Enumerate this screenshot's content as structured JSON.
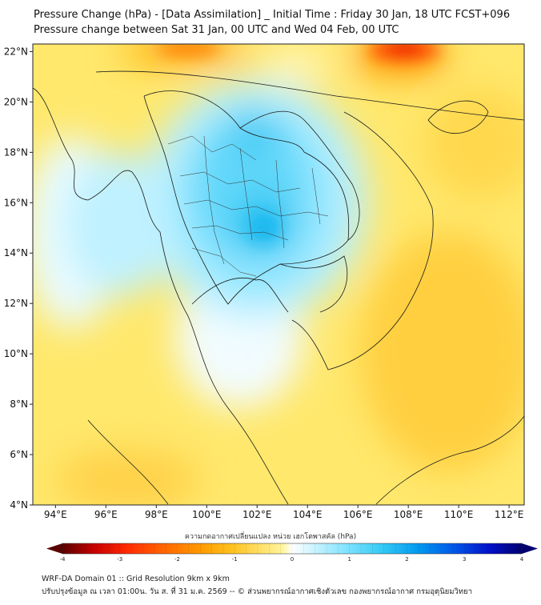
{
  "header": {
    "title_line1": "Pressure Change (hPa) - [Data Assimilation] _ Initial Time : Friday 30 Jan, 18 UTC FCST+096",
    "title_line2": "Pressure change between Sat 31 Jan, 00 UTC and Wed 04 Feb, 00 UTC"
  },
  "map": {
    "lat_ticks": [
      "22°N",
      "20°N",
      "18°N",
      "16°N",
      "14°N",
      "12°N",
      "10°N",
      "8°N",
      "6°N",
      "4°N"
    ],
    "lon_ticks": [
      "94°E",
      "96°E",
      "98°E",
      "100°E",
      "102°E",
      "104°E",
      "106°E",
      "108°E",
      "110°E",
      "112°E"
    ],
    "lat_range": [
      4,
      22.3
    ],
    "lon_range": [
      93.1,
      112.6
    ]
  },
  "colorbar": {
    "title": "ความกดอากาศเปลี่ยนแปลง หน่วย เฮกโตพาสคัล (hPa)",
    "range": [
      -4,
      4
    ],
    "tick_values": [
      "-4",
      "-3",
      "-2",
      "-1",
      "0",
      "1",
      "2",
      "3",
      "4"
    ],
    "colors": [
      "#5a0000",
      "#c80000",
      "#ff2a00",
      "#ff6600",
      "#ff9a00",
      "#ffc21f",
      "#ffe066",
      "#fff59e",
      "#ffffff",
      "#c8f3ff",
      "#7fe3ff",
      "#2fc8f5",
      "#0096f0",
      "#0050e6",
      "#0010c8",
      "#000070"
    ]
  },
  "footer": {
    "line1": "WRF-DA Domain 01 :: Grid Resolution 9km x 9km",
    "line2": "ปรับปรุงข้อมูล ณ เวลา 01:00น. วัน ส. ที่ 31 ม.ค. 2569 -- © ส่วนพยากรณ์อากาศเชิงตัวเลข กองพยากรณ์อากาศ กรมอุตุนิยมวิทยา"
  }
}
